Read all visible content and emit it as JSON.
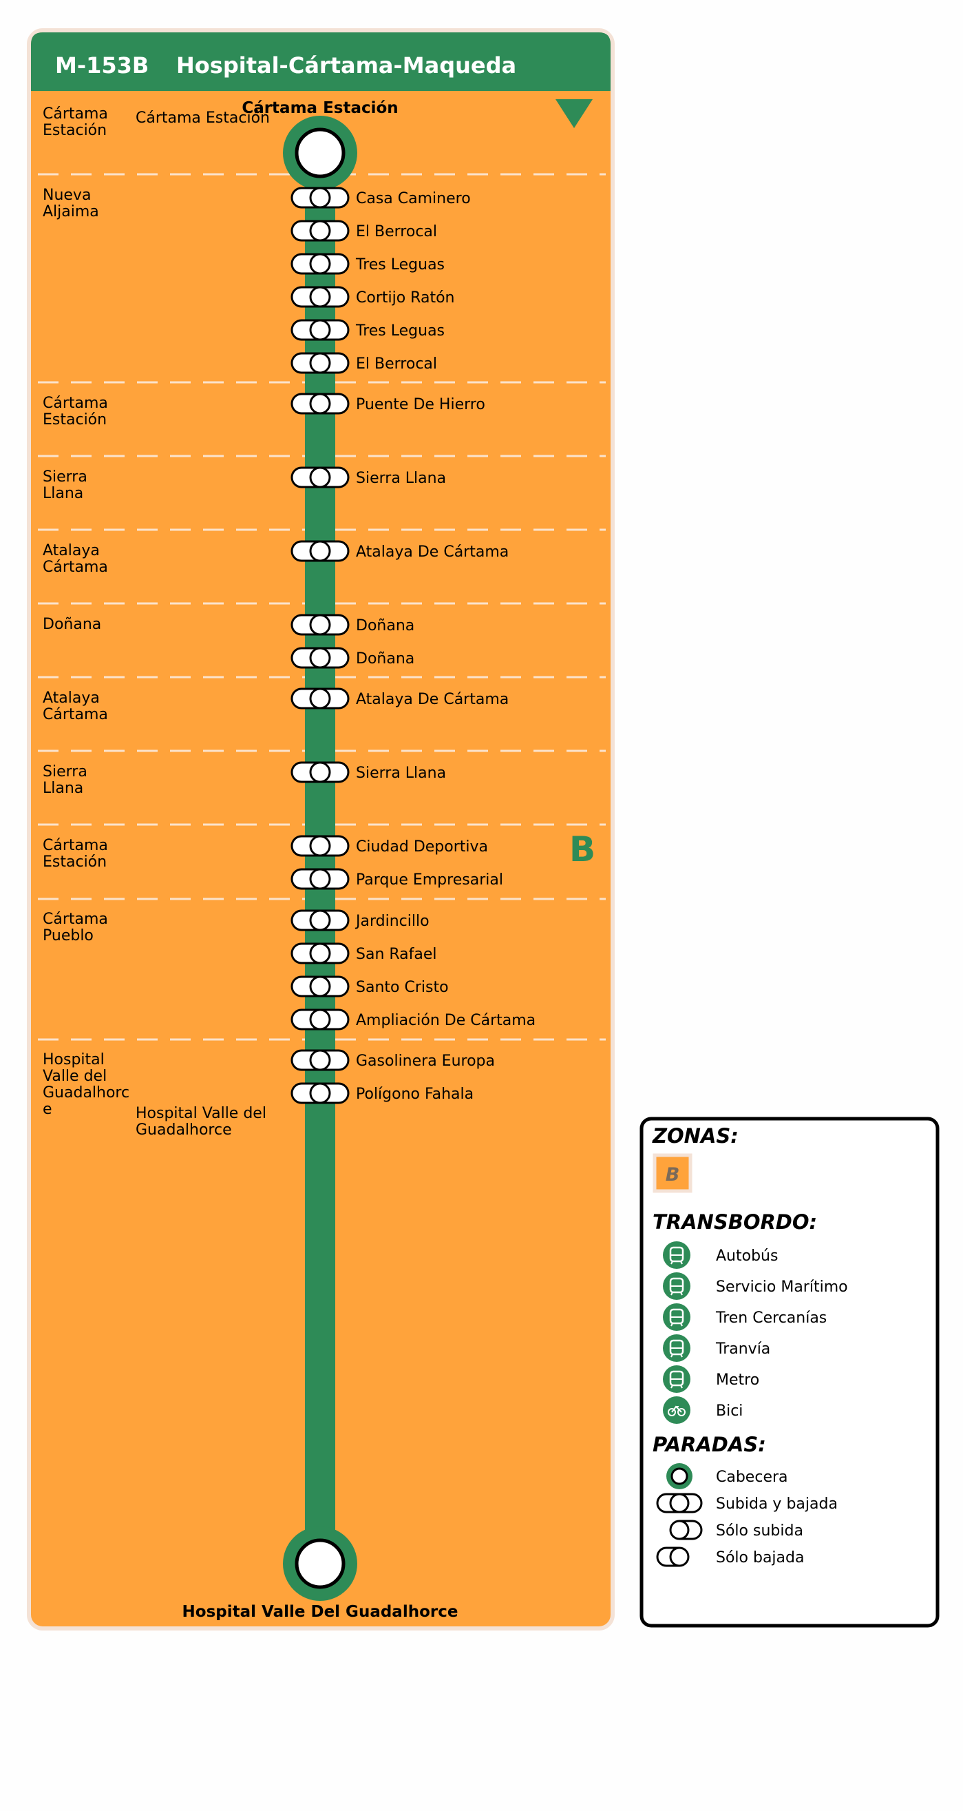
{
  "route": {
    "code": "M-153B",
    "name": "Hospital-Cártama-Maqueda",
    "start_label": "Cártama Estación",
    "end_label": "Hospital Valle Del Guadalhorce",
    "start_town": "Cártama Estación",
    "end_town": "Hospital Valle del Guadalhorce",
    "zone_letter": "B"
  },
  "colors": {
    "header": "#2e8b57",
    "line": "#2e8b57",
    "zone_fill": "#ffa33b",
    "panel_border": "#f4e2d6"
  },
  "zones": [
    {
      "name": [
        "Cártama",
        "Estación"
      ]
    },
    {
      "name": [
        "Nueva",
        "Aljaima"
      ]
    },
    {
      "name": [
        "Cártama",
        "Estación"
      ]
    },
    {
      "name": [
        "Sierra",
        "Llana"
      ]
    },
    {
      "name": [
        "Atalaya",
        "Cártama"
      ]
    },
    {
      "name": [
        "Doñana"
      ]
    },
    {
      "name": [
        "Atalaya",
        "Cártama"
      ]
    },
    {
      "name": [
        "Sierra",
        "Llana"
      ]
    },
    {
      "name": [
        "Cártama",
        "Estación"
      ]
    },
    {
      "name": [
        "Cártama",
        "Pueblo"
      ]
    },
    {
      "name": [
        "Hospital",
        "Valle del",
        "Guadalhorc",
        "e"
      ]
    }
  ],
  "stops": [
    {
      "name": "Casa Caminero"
    },
    {
      "name": "El Berrocal"
    },
    {
      "name": "Tres Leguas"
    },
    {
      "name": "Cortijo Ratón"
    },
    {
      "name": "Tres Leguas"
    },
    {
      "name": "El Berrocal"
    },
    {
      "name": "Puente De Hierro"
    },
    {
      "name": "Sierra Llana"
    },
    {
      "name": "Atalaya De Cártama"
    },
    {
      "name": "Doñana"
    },
    {
      "name": "Doñana"
    },
    {
      "name": "Atalaya De Cártama"
    },
    {
      "name": "Sierra Llana"
    },
    {
      "name": "Ciudad Deportiva"
    },
    {
      "name": "Parque Empresarial"
    },
    {
      "name": "Jardincillo"
    },
    {
      "name": "San Rafael"
    },
    {
      "name": "Santo Cristo"
    },
    {
      "name": "Ampliación De Cártama"
    },
    {
      "name": "Gasolinera Europa"
    },
    {
      "name": "Polígono Fahala"
    }
  ],
  "legend": {
    "zones_title": "ZONAS:",
    "zone_sample": "B",
    "transfer_title": "TRANSBORDO:",
    "transfers": [
      {
        "label": "Autobús",
        "icon": "bus-icon"
      },
      {
        "label": "Servicio Marítimo",
        "icon": "ferry-icon"
      },
      {
        "label": "Tren Cercanías",
        "icon": "train-icon"
      },
      {
        "label": "Tranvía",
        "icon": "tram-icon"
      },
      {
        "label": "Metro",
        "icon": "metro-icon"
      },
      {
        "label": "Bici",
        "icon": "bike-icon"
      }
    ],
    "stops_title": "PARADAS:",
    "stop_types": [
      {
        "label": "Cabecera",
        "icon": "terminal-stop-icon"
      },
      {
        "label": "Subida y bajada",
        "icon": "board-alight-stop-icon"
      },
      {
        "label": "Sólo subida",
        "icon": "board-only-stop-icon"
      },
      {
        "label": "Sólo bajada",
        "icon": "alight-only-stop-icon"
      }
    ]
  }
}
